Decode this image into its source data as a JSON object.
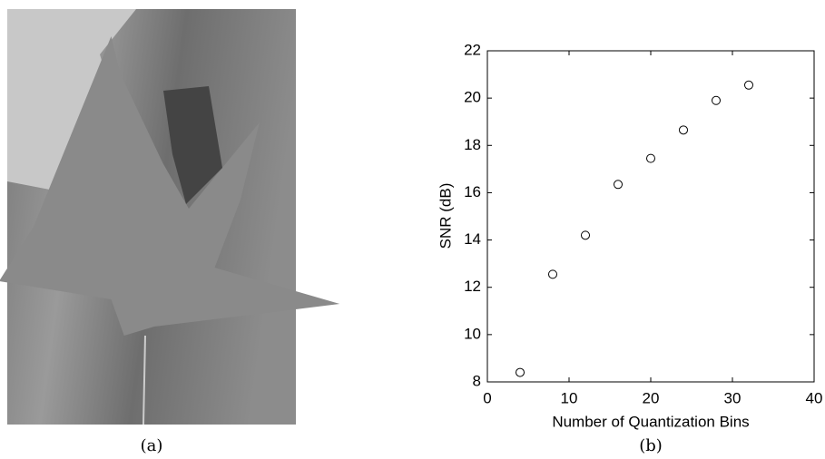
{
  "figure": {
    "captions": [
      "(a)",
      "(b)"
    ]
  },
  "chart_data": {
    "type": "scatter",
    "x_label": "Number of Quantization Bins",
    "y_label": "SNR (dB)",
    "x": [
      4,
      8,
      12,
      16,
      20,
      24,
      28,
      32
    ],
    "values": [
      8.4,
      12.55,
      14.2,
      16.35,
      17.45,
      18.65,
      19.9,
      20.55
    ],
    "color": "#000000",
    "xlim": [
      0,
      40
    ],
    "xticks": [
      0,
      10,
      20,
      30,
      40
    ],
    "ylim": [
      8,
      22
    ],
    "yticks": [
      8,
      10,
      12,
      14,
      16,
      18,
      20,
      22
    ],
    "grid": false
  }
}
